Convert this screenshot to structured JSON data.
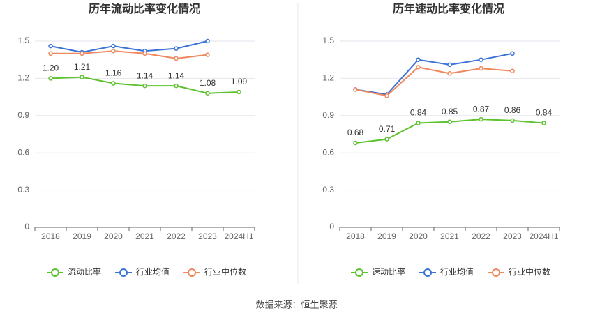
{
  "chart_data": [
    {
      "type": "line",
      "title": "历年流动比率变化情况",
      "categories": [
        "2018",
        "2019",
        "2020",
        "2021",
        "2022",
        "2023",
        "2024H1"
      ],
      "ylim": [
        0,
        1.5
      ],
      "yticks": [
        0,
        0.3,
        0.6,
        0.9,
        1.2,
        1.5
      ],
      "grid": true,
      "legend": "bottom",
      "series": [
        {
          "name": "流动比率",
          "color": "#5cc22e",
          "values": [
            1.2,
            1.21,
            1.16,
            1.14,
            1.14,
            1.08,
            1.09
          ],
          "value_labels": [
            "1.20",
            "1.21",
            "1.16",
            "1.14",
            "1.14",
            "1.08",
            "1.09"
          ]
        },
        {
          "name": "行业均值",
          "color": "#3a72d6",
          "values": [
            1.46,
            1.41,
            1.46,
            1.42,
            1.44,
            1.5,
            null
          ]
        },
        {
          "name": "行业中位数",
          "color": "#f0875e",
          "values": [
            1.4,
            1.4,
            1.42,
            1.4,
            1.36,
            1.39,
            null
          ]
        }
      ]
    },
    {
      "type": "line",
      "title": "历年速动比率变化情况",
      "categories": [
        "2018",
        "2019",
        "2020",
        "2021",
        "2022",
        "2023",
        "2024H1"
      ],
      "ylim": [
        0,
        1.5
      ],
      "yticks": [
        0,
        0.3,
        0.6,
        0.9,
        1.2,
        1.5
      ],
      "grid": true,
      "legend": "bottom",
      "series": [
        {
          "name": "速动比率",
          "color": "#5cc22e",
          "values": [
            0.68,
            0.71,
            0.84,
            0.85,
            0.87,
            0.86,
            0.84
          ],
          "value_labels": [
            "0.68",
            "0.71",
            "0.84",
            "0.85",
            "0.87",
            "0.86",
            "0.84"
          ]
        },
        {
          "name": "行业均值",
          "color": "#3a72d6",
          "values": [
            1.11,
            1.07,
            1.35,
            1.31,
            1.35,
            1.4,
            null
          ]
        },
        {
          "name": "行业中位数",
          "color": "#f0875e",
          "values": [
            1.11,
            1.06,
            1.29,
            1.24,
            1.28,
            1.26,
            null
          ]
        }
      ]
    }
  ],
  "source": "数据来源：恒生聚源"
}
